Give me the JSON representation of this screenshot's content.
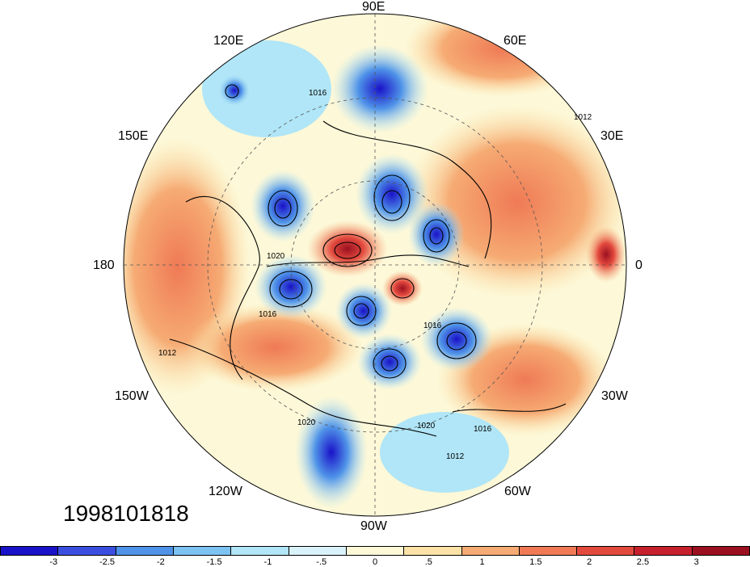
{
  "map": {
    "projection": "north polar stereographic",
    "longitude_labels": {
      "top": "90E",
      "upper_left": "120E",
      "upper_right": "60E",
      "left_upper": "150E",
      "right_upper": "30E",
      "left": "180",
      "right": "0",
      "left_lower": "150W",
      "right_lower": "30W",
      "lower_left": "120W",
      "lower_right": "60W",
      "bottom": "90W"
    },
    "isobar_labels": [
      "1016",
      "1020",
      "1012",
      "1016",
      "1020",
      "1016",
      "1012",
      "1020",
      "1016",
      "1012"
    ],
    "timestamp": "1998101818"
  },
  "colorbar": {
    "tick_labels": [
      "-3",
      "-2.5",
      "-2",
      "-1.5",
      "-1",
      "-.5",
      "0",
      ".5",
      "1",
      "1.5",
      "2",
      "2.5",
      "3"
    ],
    "colors": [
      "#1a12c8",
      "#3a4ee0",
      "#4f93e8",
      "#7cc3f2",
      "#b0e6f7",
      "#daf3fb",
      "#fdf8d8",
      "#fbe3a7",
      "#f6ab74",
      "#ef7a55",
      "#e34a3e",
      "#c6202d",
      "#9b1020"
    ]
  }
}
